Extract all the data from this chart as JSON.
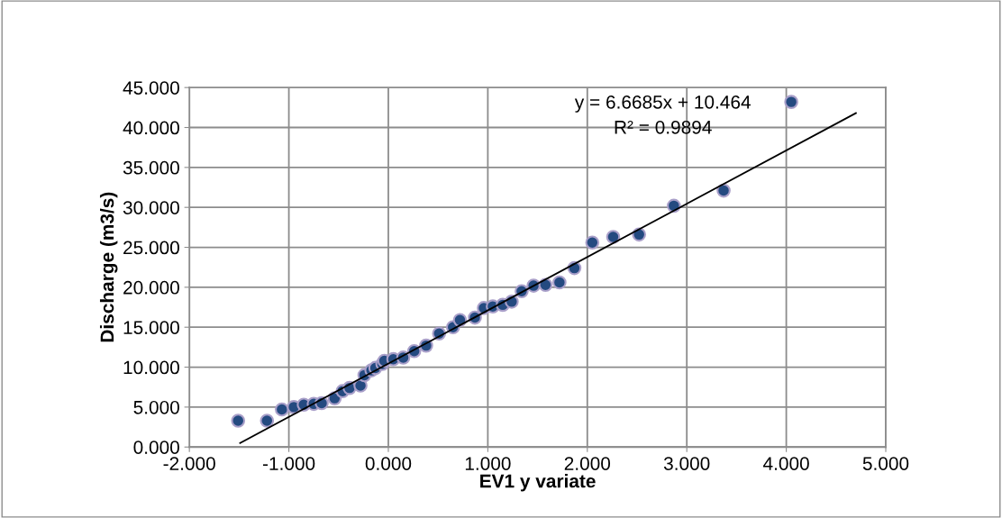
{
  "chart_data": {
    "type": "scatter",
    "xlabel": "EV1 y variate",
    "ylabel": "Discharge (m3/s)",
    "xlim": [
      -2,
      5
    ],
    "ylim": [
      0,
      45
    ],
    "xticks": [
      {
        "value": -2,
        "label": "-2.000"
      },
      {
        "value": -1,
        "label": "-1.000"
      },
      {
        "value": 0,
        "label": "0.000"
      },
      {
        "value": 1,
        "label": "1.000"
      },
      {
        "value": 2,
        "label": "2.000"
      },
      {
        "value": 3,
        "label": "3.000"
      },
      {
        "value": 4,
        "label": "4.000"
      },
      {
        "value": 5,
        "label": "5.000"
      }
    ],
    "yticks": [
      {
        "value": 0,
        "label": "0.000"
      },
      {
        "value": 5,
        "label": "5.000"
      },
      {
        "value": 10,
        "label": "10.000"
      },
      {
        "value": 15,
        "label": "15.000"
      },
      {
        "value": 20,
        "label": "20.000"
      },
      {
        "value": 25,
        "label": "25.000"
      },
      {
        "value": 30,
        "label": "30.000"
      },
      {
        "value": 35,
        "label": "35.000"
      },
      {
        "value": 40,
        "label": "40.000"
      },
      {
        "value": 45,
        "label": "45.000"
      }
    ],
    "grid": true,
    "marker": "circle",
    "annotations": [
      "y = 6.6685x + 10.464",
      "R² = 0.9894"
    ],
    "series": [
      {
        "color": "#244a80",
        "x": [
          -1.51,
          -1.22,
          -1.07,
          -0.95,
          -0.85,
          -0.75,
          -0.67,
          -0.54,
          -0.46,
          -0.39,
          -0.28,
          -0.24,
          -0.17,
          -0.13,
          -0.06,
          -0.04,
          0.05,
          0.15,
          0.26,
          0.38,
          0.51,
          0.65,
          0.72,
          0.87,
          0.96,
          1.05,
          1.15,
          1.24,
          1.34,
          1.46,
          1.58,
          1.72,
          1.87,
          2.05,
          2.26,
          2.52,
          2.87,
          3.37,
          4.05
        ],
        "values": [
          3.3,
          3.3,
          4.7,
          5.0,
          5.3,
          5.4,
          5.5,
          6.1,
          7.0,
          7.4,
          7.7,
          9.0,
          9.6,
          9.9,
          10.4,
          10.8,
          11.0,
          11.2,
          12.0,
          12.7,
          14.2,
          15.0,
          15.9,
          16.2,
          17.4,
          17.6,
          17.8,
          18.2,
          19.5,
          20.2,
          20.3,
          20.6,
          22.4,
          25.6,
          26.3,
          26.6,
          30.2,
          32.1,
          43.2
        ]
      },
      {
        "type": "line",
        "color": "#000000",
        "marker": "none",
        "x": [
          -1.49,
          4.7
        ],
        "values": [
          0.5,
          41.8
        ]
      }
    ]
  }
}
